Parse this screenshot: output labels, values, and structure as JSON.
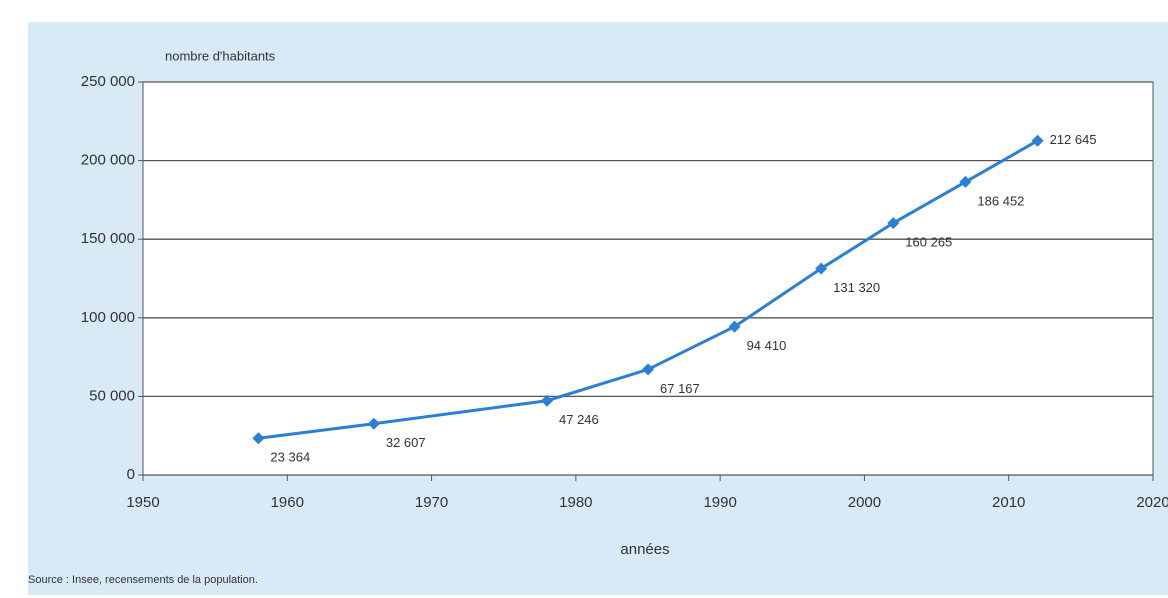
{
  "chart_data": {
    "type": "line",
    "y_label": "nombre d'habitants",
    "x_label": "années",
    "source": "Source : Insee, recensements de la population.",
    "x": [
      1958,
      1966,
      1978,
      1985,
      1991,
      1997,
      2002,
      2007,
      2012
    ],
    "series": [
      {
        "name": "nombre d'habitants",
        "color": "#2a7fd6",
        "values": [
          23364,
          32607,
          47246,
          67167,
          94410,
          131320,
          160265,
          186452,
          212645
        ],
        "value_labels": [
          "23 364",
          "32 607",
          "47 246",
          "67 167",
          "94 410",
          "131 320",
          "160 265",
          "186 452",
          "212 645"
        ]
      }
    ],
    "xlim": [
      1950,
      2020
    ],
    "xticks": [
      1950,
      1960,
      1970,
      1980,
      1990,
      2000,
      2010,
      2020
    ],
    "ylim": [
      0,
      250000
    ],
    "yticks": [
      0,
      {
        "value": 50000,
        "label": "50 000"
      },
      {
        "value": 100000,
        "label": "100 000"
      },
      {
        "value": 150000,
        "label": "150 000"
      },
      {
        "value": 200000,
        "label": "200 000"
      },
      {
        "value": 250000,
        "label": "250 000"
      }
    ],
    "grid": true
  }
}
